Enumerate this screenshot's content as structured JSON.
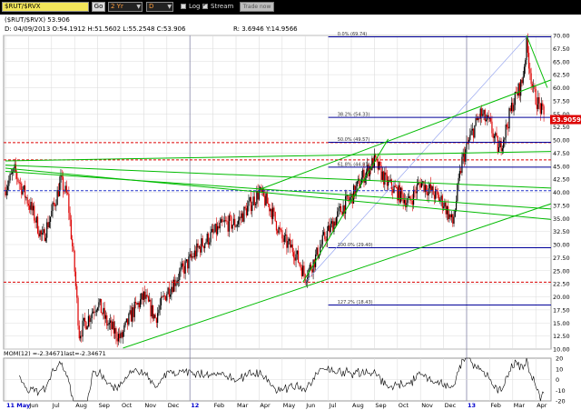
{
  "toolbar": {
    "symbol": "$RUT/$RVX",
    "go_label": "Go",
    "period": "2 Yr",
    "interval": "D",
    "log_label": "Log",
    "stream_label": "Stream",
    "trade_label": "Trade now"
  },
  "header": {
    "title": "($RUT/$RVX)  53.906",
    "ohlc": "D: 04/09/2013 O:54.1912 H:51.5602 L:55.2548 C:53.906",
    "rstats": "R: 3.6946   Y:14.9566",
    "mom_label": "MOM(12) =-2.34671last=-2.34671"
  },
  "colors": {
    "up": "#000000",
    "down": "#dd0000",
    "trendline": "#00bb00",
    "fib": "#000099",
    "level": "#dd0000",
    "last_price_bg": "#dd0000"
  },
  "chart_data": {
    "type": "candlestick",
    "ylim": [
      10,
      70
    ],
    "yticks": [
      "70.00",
      "67.50",
      "65.00",
      "62.50",
      "60.00",
      "57.50",
      "55.00",
      "52.50",
      "50.00",
      "47.50",
      "45.00",
      "42.50",
      "40.00",
      "37.50",
      "35.00",
      "32.50",
      "30.00",
      "27.50",
      "25.00",
      "22.50",
      "20.00",
      "17.50",
      "15.00",
      "12.50",
      "10.00"
    ],
    "x_labels": [
      "11 May",
      "Jun",
      "Jul",
      "Aug",
      "Sep",
      "Oct",
      "Nov",
      "Dec",
      "12",
      "Feb",
      "Mar",
      "Apr",
      "May",
      "Jun",
      "Jul",
      "Aug",
      "Sep",
      "Oct",
      "Nov",
      "Dec",
      "13",
      "Feb",
      "Mar",
      "Apr"
    ],
    "last_price": "53.90597",
    "close_path": [
      {
        "m": 0,
        "v": 41
      },
      {
        "m": 0.4,
        "v": 44
      },
      {
        "m": 0.8,
        "v": 40
      },
      {
        "m": 1.2,
        "v": 36
      },
      {
        "m": 1.6,
        "v": 31
      },
      {
        "m": 2.0,
        "v": 36
      },
      {
        "m": 2.4,
        "v": 42
      },
      {
        "m": 2.7,
        "v": 39
      },
      {
        "m": 3.0,
        "v": 25
      },
      {
        "m": 3.2,
        "v": 13
      },
      {
        "m": 3.6,
        "v": 16
      },
      {
        "m": 4.0,
        "v": 19
      },
      {
        "m": 4.4,
        "v": 15
      },
      {
        "m": 5.0,
        "v": 12
      },
      {
        "m": 5.5,
        "v": 17
      },
      {
        "m": 6.0,
        "v": 20
      },
      {
        "m": 6.5,
        "v": 16
      },
      {
        "m": 7.0,
        "v": 21
      },
      {
        "m": 7.5,
        "v": 24
      },
      {
        "m": 8.0,
        "v": 27
      },
      {
        "m": 8.5,
        "v": 30
      },
      {
        "m": 9.0,
        "v": 32
      },
      {
        "m": 9.5,
        "v": 34
      },
      {
        "m": 10.0,
        "v": 34
      },
      {
        "m": 10.5,
        "v": 37
      },
      {
        "m": 11.0,
        "v": 40
      },
      {
        "m": 11.5,
        "v": 37
      },
      {
        "m": 12.0,
        "v": 31
      },
      {
        "m": 12.5,
        "v": 29
      },
      {
        "m": 13.0,
        "v": 24
      },
      {
        "m": 13.4,
        "v": 27
      },
      {
        "m": 13.8,
        "v": 31
      },
      {
        "m": 14.2,
        "v": 34
      },
      {
        "m": 14.6,
        "v": 37
      },
      {
        "m": 15.0,
        "v": 39
      },
      {
        "m": 15.5,
        "v": 43
      },
      {
        "m": 16.0,
        "v": 46
      },
      {
        "m": 16.5,
        "v": 42
      },
      {
        "m": 17.0,
        "v": 40
      },
      {
        "m": 17.5,
        "v": 38
      },
      {
        "m": 18.0,
        "v": 42
      },
      {
        "m": 18.5,
        "v": 40
      },
      {
        "m": 19.0,
        "v": 38
      },
      {
        "m": 19.4,
        "v": 34
      },
      {
        "m": 19.8,
        "v": 46
      },
      {
        "m": 20.2,
        "v": 51
      },
      {
        "m": 20.6,
        "v": 55
      },
      {
        "m": 21.0,
        "v": 53
      },
      {
        "m": 21.4,
        "v": 48
      },
      {
        "m": 21.7,
        "v": 52
      },
      {
        "m": 22.0,
        "v": 57
      },
      {
        "m": 22.4,
        "v": 61
      },
      {
        "m": 22.6,
        "v": 68
      },
      {
        "m": 22.9,
        "v": 59
      },
      {
        "m": 23.2,
        "v": 56
      },
      {
        "m": 23.4,
        "v": 53.9
      }
    ],
    "horizontal_levels": [
      {
        "value": 49.5,
        "kind": "level"
      },
      {
        "value": 46.2,
        "kind": "level"
      },
      {
        "value": 40.3,
        "kind": "blue-dashed"
      },
      {
        "value": 22.8,
        "kind": "level"
      }
    ],
    "fib_levels": [
      {
        "label": "0.0%  (69.74)",
        "value": 69.74
      },
      {
        "label": "38.2%  (54.33)",
        "value": 54.33
      },
      {
        "label": "50.0%  (49.57)",
        "value": 49.57
      },
      {
        "label": "61.8%  (44.81)",
        "value": 44.81
      },
      {
        "label": "100.0%  (29.40)",
        "value": 29.4
      },
      {
        "label": "127.2%  (18.43)",
        "value": 18.43
      }
    ],
    "fib_start_month": 14.0,
    "trendlines": [
      {
        "m1": 0,
        "v1": 45.2,
        "m2": 23.7,
        "v2": 40.8
      },
      {
        "m1": 0,
        "v1": 44.6,
        "m2": 23.7,
        "v2": 34.8
      },
      {
        "m1": 0,
        "v1": 44.0,
        "m2": 23.7,
        "v2": 36.8
      },
      {
        "m1": 0,
        "v1": 46.0,
        "m2": 23.7,
        "v2": 47.8
      },
      {
        "m1": 5.1,
        "v1": 10.2,
        "m2": 23.7,
        "v2": 37.8
      },
      {
        "m1": 11.0,
        "v1": 40.5,
        "m2": 23.7,
        "v2": 61.5
      },
      {
        "m1": 12.9,
        "v1": 22.8,
        "m2": 16.6,
        "v2": 50.2
      },
      {
        "m1": 22.6,
        "v1": 70.0,
        "m2": 23.5,
        "v2": 60.0
      }
    ],
    "mom": {
      "ylim": [
        -20,
        20
      ],
      "yticks": [
        "20",
        "10",
        "0",
        "-10",
        "-20"
      ]
    }
  }
}
